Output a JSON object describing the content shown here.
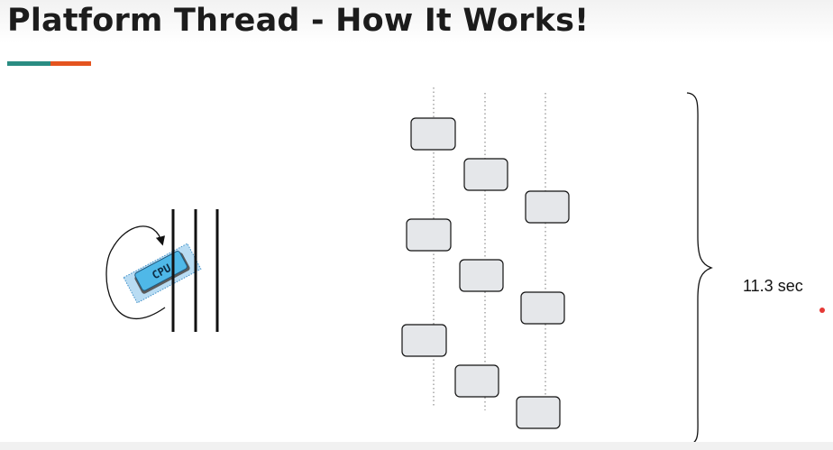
{
  "slide": {
    "title": "Platform Thread - How It Works!",
    "duration_label": "11.3 sec",
    "cpu_label": "CPU",
    "accent_colors": {
      "teal": "#2a8c82",
      "orange": "#e4541f",
      "pointer": "#e53935"
    }
  },
  "icons": [
    "cpu-chip-icon",
    "circular-arrow-icon",
    "curly-brace-icon"
  ],
  "diagram": {
    "platform_thread_lines": 3,
    "timeline_lanes": 3,
    "task_blocks_per_lane": 3
  }
}
